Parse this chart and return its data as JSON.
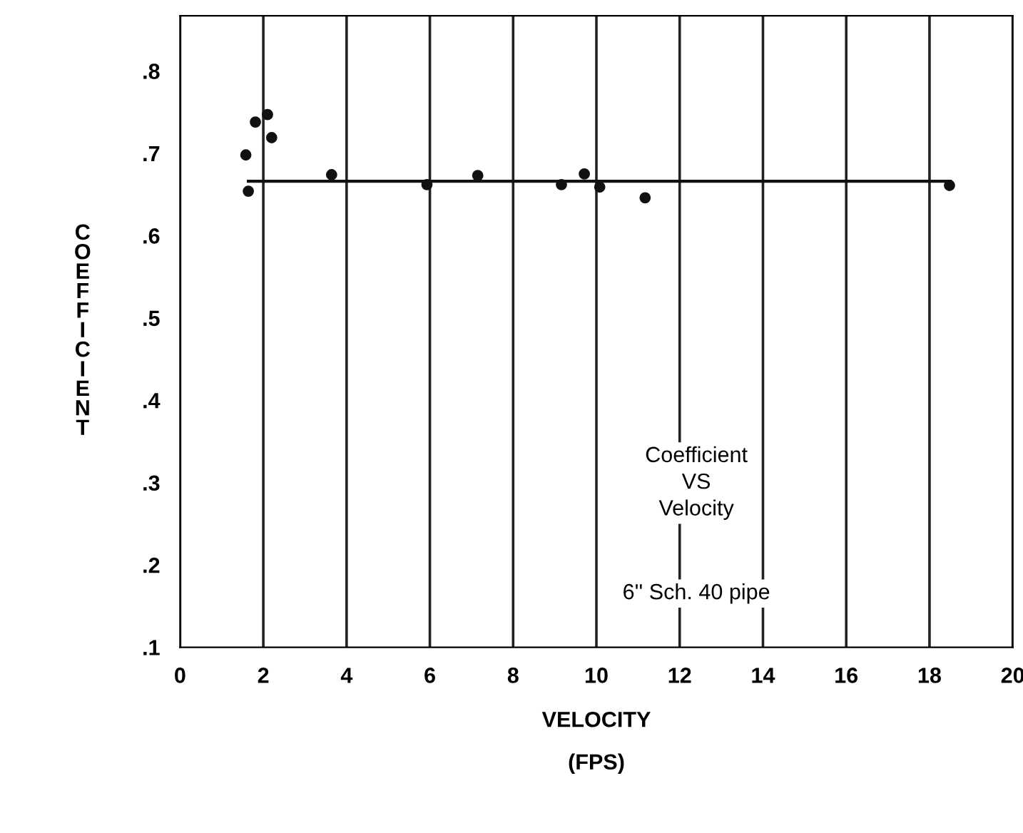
{
  "chart_data": {
    "type": "scatter",
    "xlabel": "VELOCITY\n(FPS)",
    "ylabel": "COEFFICIENT",
    "series": [
      {
        "color": "#111111",
        "marker": "circle",
        "x": [
          1.58,
          1.64,
          1.81,
          2.1,
          2.2,
          3.64,
          5.93,
          7.15,
          9.16,
          9.71,
          10.08,
          11.17,
          18.48
        ],
        "values": [
          0.698,
          0.654,
          0.738,
          0.747,
          0.719,
          0.674,
          0.662,
          0.673,
          0.662,
          0.675,
          0.659,
          0.646,
          0.661
        ]
      },
      {
        "type": "line",
        "color": "#111111",
        "line_style": "solid",
        "x": [
          1.64,
          18.5
        ],
        "values": [
          0.666,
          0.666
        ]
      }
    ],
    "xlim": [
      0,
      20
    ],
    "ylim": [
      0.1,
      0.867
    ],
    "xticks": [
      0,
      2,
      4,
      6,
      8,
      10,
      12,
      14,
      16,
      18,
      20
    ],
    "yticks": [
      {
        "value": 0.1,
        "label": ".1"
      },
      {
        "value": 0.2,
        "label": ".2"
      },
      {
        "value": 0.3,
        "label": ".3"
      },
      {
        "value": 0.4,
        "label": ".4"
      },
      {
        "value": 0.5,
        "label": ".5"
      },
      {
        "value": 0.6,
        "label": ".6"
      },
      {
        "value": 0.7,
        "label": ".7"
      },
      {
        "value": 0.8,
        "label": ".8"
      }
    ],
    "grid": "x",
    "annotations": [
      "Coefficient\nVS\nVelocity",
      "6'' Sch. 40 pipe"
    ]
  }
}
